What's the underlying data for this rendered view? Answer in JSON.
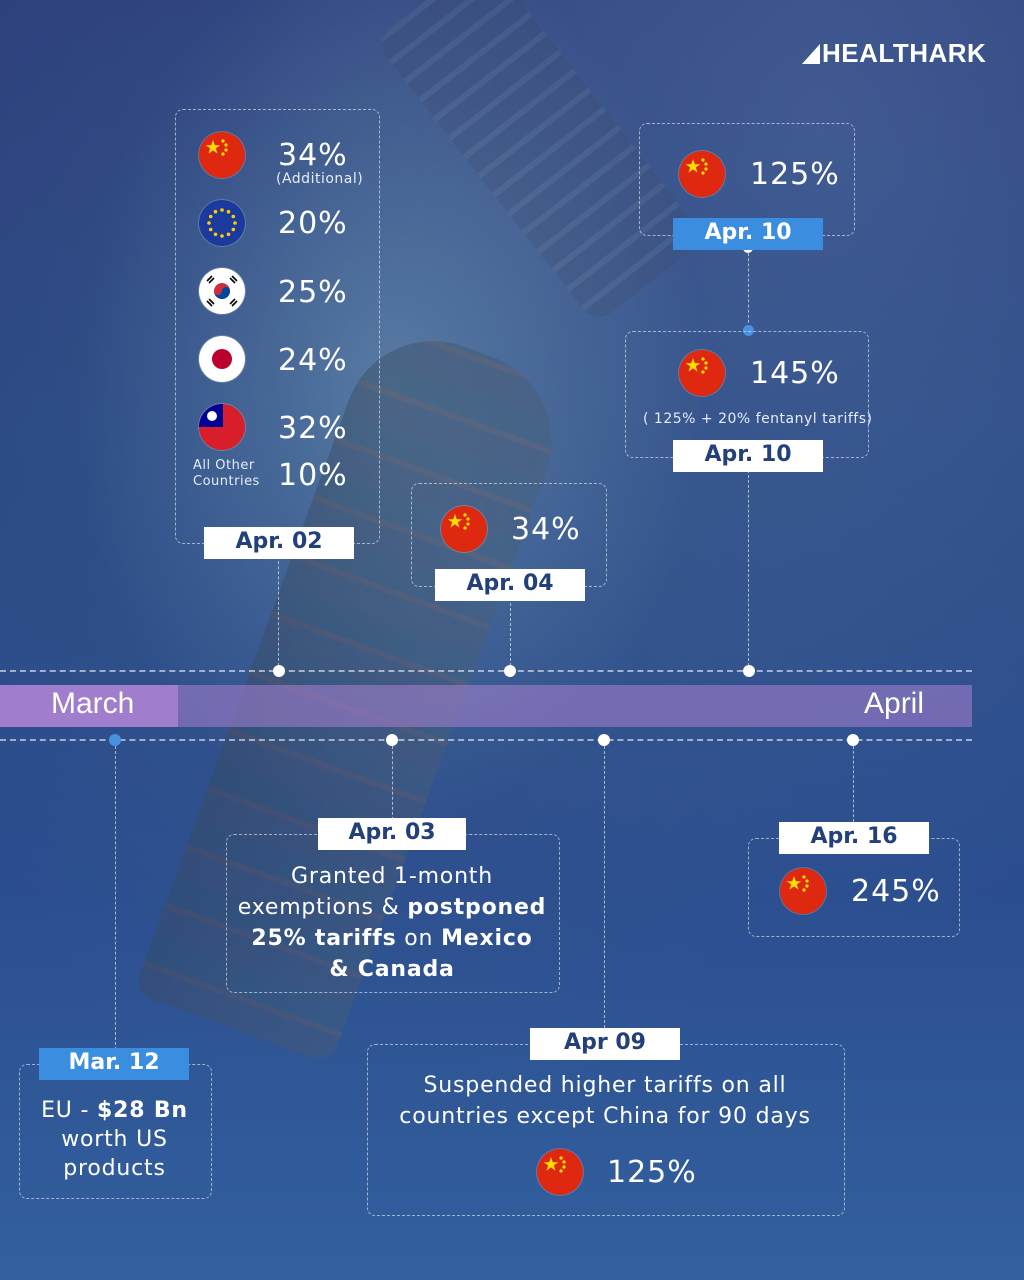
{
  "brand": "HEALTHARK",
  "timeline": {
    "start_month": "March",
    "end_month": "April"
  },
  "events": {
    "apr02": {
      "date": "Apr. 02",
      "rows": [
        {
          "country": "China",
          "flag": "china-flag-icon",
          "rate": "34%",
          "note": "(Additional)"
        },
        {
          "country": "EU",
          "flag": "eu-flag-icon",
          "rate": "20%"
        },
        {
          "country": "South Korea",
          "flag": "south-korea-flag-icon",
          "rate": "25%"
        },
        {
          "country": "Japan",
          "flag": "japan-flag-icon",
          "rate": "24%"
        },
        {
          "country": "Taiwan",
          "flag": "taiwan-flag-icon",
          "rate": "32%"
        },
        {
          "country": "All Other Countries",
          "label_line1": "All Other",
          "label_line2": "Countries",
          "rate": "10%"
        }
      ]
    },
    "apr04": {
      "date": "Apr. 04",
      "rate": "34%"
    },
    "apr10a": {
      "date": "Apr. 10",
      "rate": "125%"
    },
    "apr10b": {
      "date": "Apr. 10",
      "rate": "145%",
      "note": "( 125% + 20% fentanyl tariffs)"
    },
    "mar12": {
      "date": "Mar. 12",
      "line1_pre": "EU - ",
      "line1_bold": "$28 Bn",
      "line2": "worth US",
      "line3": "products"
    },
    "apr03": {
      "date": "Apr. 03",
      "line1": "Granted 1-month",
      "line2_pre": "exemptions & ",
      "line2_bold": "postponed",
      "line3_bold": "25% tariffs",
      "line3_mid": " on ",
      "line3_bold2": "Mexico",
      "line4_bold": "& Canada"
    },
    "apr09": {
      "date": "Apr 09",
      "line1": "Suspended higher tariffs on all",
      "line2": "countries except China for 90 days",
      "rate": "125%"
    },
    "apr16": {
      "date": "Apr. 16",
      "rate": "245%"
    }
  },
  "colors": {
    "band": "#aa82d2",
    "tag_blue": "#3b8de0",
    "tag_text": "#23407a",
    "china_red": "#de2910"
  }
}
